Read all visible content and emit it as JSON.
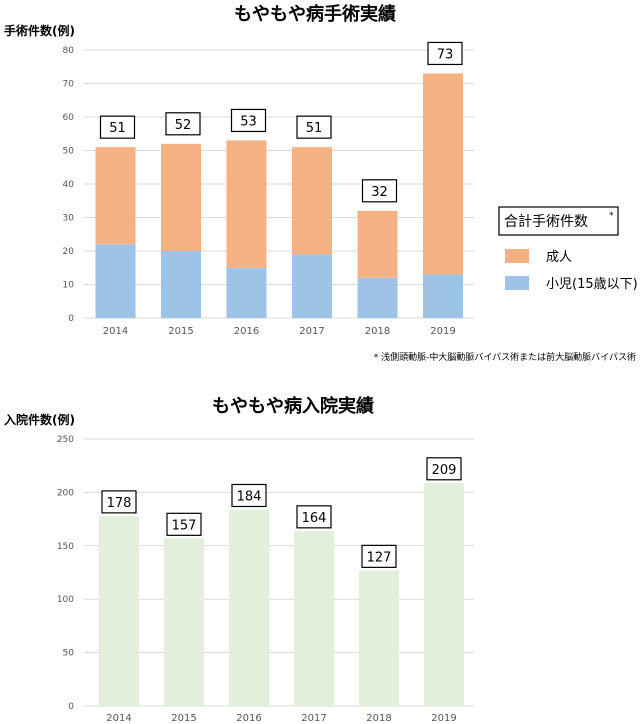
{
  "chart_data": [
    {
      "type": "bar",
      "stacked": true,
      "title": "もやもや病手術実績",
      "ylabel": "手術件数(例)",
      "xlabel": "",
      "ylim": [
        0,
        80
      ],
      "yticks": [
        0,
        10,
        20,
        30,
        40,
        50,
        60,
        70,
        80
      ],
      "grid": true,
      "categories": [
        "2014",
        "2015",
        "2016",
        "2017",
        "2018",
        "2019"
      ],
      "series": [
        {
          "name": "小児(15歳以下)",
          "color": "#9dc3e6",
          "values": [
            22,
            20,
            15,
            19,
            12,
            13
          ]
        },
        {
          "name": "成人",
          "color": "#f4b183",
          "values": [
            29,
            32,
            38,
            32,
            20,
            60
          ]
        }
      ],
      "totals": [
        "51",
        "52",
        "53",
        "51",
        "32",
        "73"
      ],
      "legend": {
        "title": "合計手術件数",
        "title_mark": "*",
        "placement": "right"
      },
      "footnote": "* 浅側頭動脈-中大脳動脈バイパス術または前大脳動脈バイパス術"
    },
    {
      "type": "bar",
      "title": "もやもや病入院実績",
      "ylabel": "入院件数(例)",
      "xlabel": "",
      "ylim": [
        0,
        250
      ],
      "yticks": [
        0,
        50,
        100,
        150,
        200,
        250
      ],
      "grid": true,
      "categories": [
        "2014",
        "2015",
        "2016",
        "2017",
        "2018",
        "2019"
      ],
      "color": "#e2efda",
      "values": [
        178,
        157,
        184,
        164,
        127,
        209
      ]
    }
  ]
}
